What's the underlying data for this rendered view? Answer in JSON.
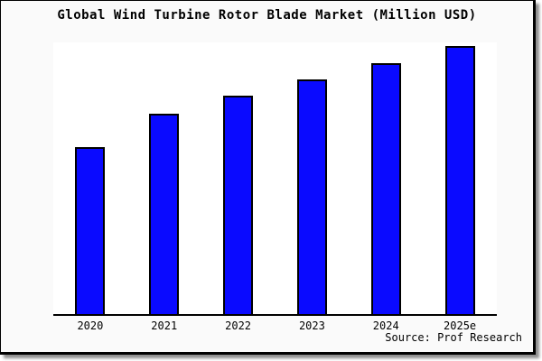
{
  "chart_data": {
    "type": "bar",
    "title": "Global Wind Turbine Rotor Blade Market (Million USD)",
    "categories": [
      "2020",
      "2021",
      "2022",
      "2023",
      "2024",
      "2025e"
    ],
    "series": [
      {
        "name": "Global Wind Turbine Rotor Blade Market",
        "values": [
          61.6,
          73.9,
          80.3,
          86.4,
          92.3,
          98.6
        ]
      }
    ],
    "value_units": "percent of plot height (y-axis has no ticks, labels or gridlines in source image)",
    "xlabel": "",
    "ylabel": "",
    "legend": "none",
    "grid": false
  },
  "source": {
    "label": "Source: Prof Research"
  },
  "colors": {
    "bar_fill": "#0a0aff",
    "bar_border": "#000000",
    "outer_background": "#fafafa",
    "plot_background": "#ffffff",
    "axis_line": "#000000",
    "text": "#000000",
    "frame_border": "#000000"
  }
}
